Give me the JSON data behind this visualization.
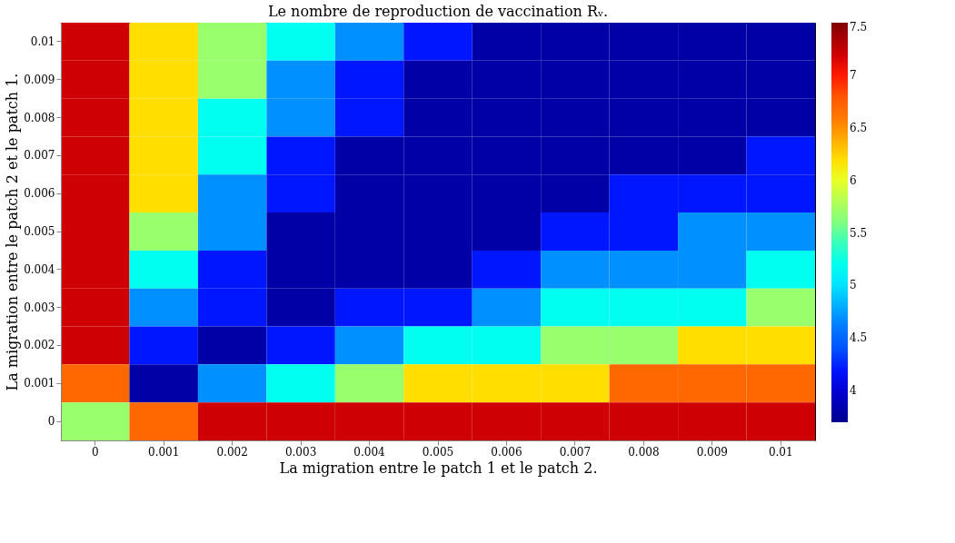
{
  "chart_data": {
    "type": "heatmap",
    "title": "Le nombre de reproduction de vaccination Rᵥ.",
    "xlabel": "La migration entre le patch 1 et le patch 2.",
    "ylabel": "La migration entre le patch 2 et le patch 1.",
    "categories": [
      "0",
      "0.001",
      "0.002",
      "0.003",
      "0.004",
      "0.005",
      "0.006",
      "0.007",
      "0.008",
      "0.009",
      "0.01"
    ],
    "y_categories": [
      "0.01",
      "0.009",
      "0.008",
      "0.007",
      "0.006",
      "0.005",
      "0.004",
      "0.003",
      "0.002",
      "0.001",
      "0"
    ],
    "cells": [
      [
        7.2,
        6.2,
        5.7,
        5.2,
        4.7,
        4.2,
        3.8,
        3.8,
        3.8,
        3.8,
        3.8
      ],
      [
        7.2,
        6.2,
        5.7,
        4.7,
        4.2,
        3.8,
        3.8,
        3.8,
        3.8,
        3.8,
        3.8
      ],
      [
        7.2,
        6.2,
        5.2,
        4.7,
        4.2,
        3.8,
        3.8,
        3.8,
        3.8,
        3.8,
        3.8
      ],
      [
        7.2,
        6.2,
        5.2,
        4.2,
        3.8,
        3.8,
        3.8,
        3.8,
        3.8,
        3.8,
        4.2
      ],
      [
        7.2,
        6.2,
        4.7,
        4.2,
        3.8,
        3.8,
        3.8,
        3.8,
        4.2,
        4.2,
        4.2
      ],
      [
        7.2,
        5.7,
        4.7,
        3.8,
        3.8,
        3.8,
        3.8,
        4.2,
        4.2,
        4.7,
        4.7
      ],
      [
        7.2,
        5.2,
        4.2,
        3.8,
        3.8,
        3.8,
        4.2,
        4.7,
        4.7,
        4.7,
        5.2
      ],
      [
        7.2,
        4.7,
        4.2,
        3.8,
        4.2,
        4.2,
        4.7,
        5.2,
        5.2,
        5.2,
        5.7
      ],
      [
        7.2,
        4.2,
        3.8,
        4.2,
        4.7,
        5.2,
        5.2,
        5.7,
        5.7,
        6.2,
        6.2
      ],
      [
        6.7,
        3.8,
        4.7,
        5.2,
        5.7,
        6.2,
        6.2,
        6.2,
        6.7,
        6.7,
        6.7
      ],
      [
        5.7,
        6.7,
        7.2,
        7.2,
        7.2,
        7.2,
        7.2,
        7.2,
        7.2,
        7.2,
        7.2
      ]
    ],
    "clim": [
      3.7,
      7.5
    ],
    "cticks": [
      4,
      4.5,
      5,
      5.5,
      6,
      6.5,
      7,
      7.5
    ]
  }
}
